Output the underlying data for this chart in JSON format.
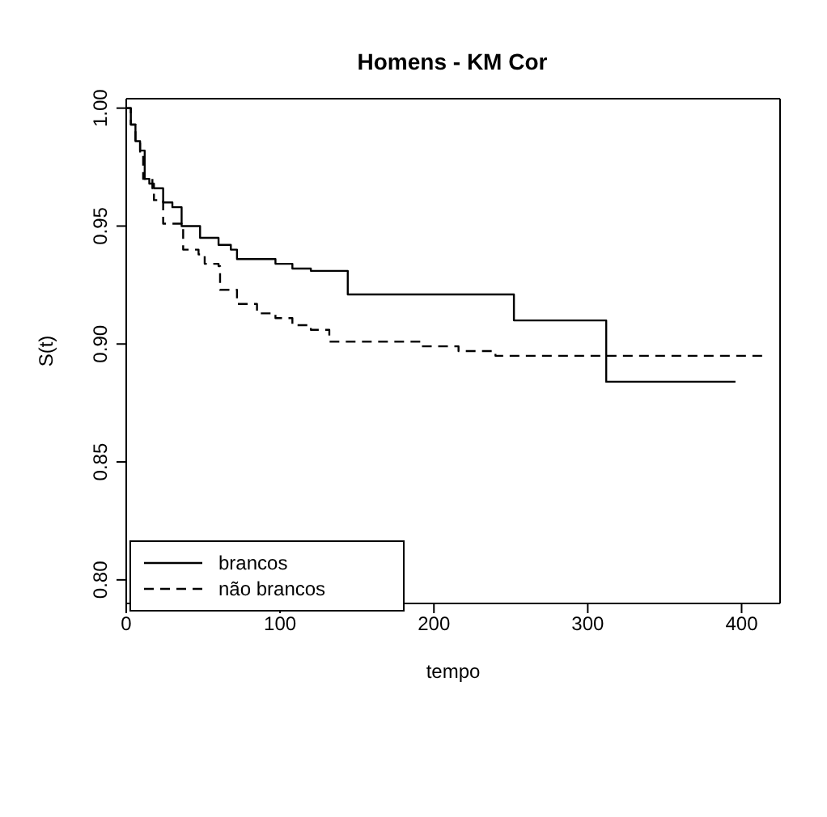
{
  "chart_data": {
    "type": "step",
    "title": "Homens - KM Cor",
    "xlabel": "tempo",
    "ylabel": "S(t)",
    "xlim": [
      0,
      425
    ],
    "xticks": [
      0,
      100,
      200,
      300,
      400
    ],
    "ylim": [
      0.79,
      1.004
    ],
    "yticks": [
      {
        "value": 0.8,
        "label": "0.80"
      },
      {
        "value": 0.85,
        "label": "0.85"
      },
      {
        "value": 0.9,
        "label": "0.90"
      },
      {
        "value": 0.95,
        "label": "0.95"
      },
      {
        "value": 1.0,
        "label": "1.00"
      }
    ],
    "legend": "bottom left",
    "marker": "none",
    "series": [
      {
        "name": "brancos",
        "color": "#000000",
        "line_style": "solid",
        "x": [
          0,
          3,
          6,
          9,
          12,
          15,
          18,
          24,
          30,
          36,
          48,
          60,
          68,
          72,
          97,
          108,
          120,
          144,
          252,
          312,
          396
        ],
        "values": [
          1.0,
          0.993,
          0.986,
          0.982,
          0.97,
          0.968,
          0.966,
          0.96,
          0.958,
          0.95,
          0.945,
          0.942,
          0.94,
          0.936,
          0.934,
          0.932,
          0.931,
          0.921,
          0.91,
          0.884,
          0.884
        ]
      },
      {
        "name": "não brancos",
        "color": "#000000",
        "line_style": "dashed",
        "x": [
          0,
          3,
          6,
          9,
          11,
          17,
          18,
          24,
          36,
          37,
          47,
          51,
          60,
          61,
          72,
          85,
          97,
          108,
          120,
          132,
          192,
          216,
          240,
          415
        ],
        "values": [
          1.0,
          0.993,
          0.986,
          0.98,
          0.97,
          0.966,
          0.961,
          0.951,
          0.949,
          0.94,
          0.938,
          0.934,
          0.933,
          0.923,
          0.917,
          0.913,
          0.911,
          0.908,
          0.906,
          0.901,
          0.899,
          0.897,
          0.895,
          0.895
        ]
      }
    ]
  }
}
